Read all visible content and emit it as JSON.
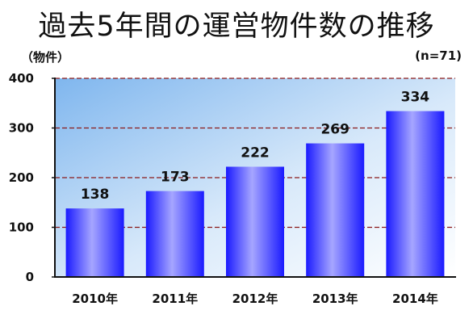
{
  "title": "過去5年間の運営物件数の推移",
  "unit_label": "（物件）",
  "note": "(n=71)",
  "colors": {
    "bar_top": "#1a1aff",
    "bar_mid": "#a0a0ff",
    "grid": "#8b1a1a",
    "plot_bg_start": "#7fb6ee",
    "plot_bg_end": "#ffffff"
  },
  "chart_data": {
    "type": "bar",
    "categories": [
      "2010年",
      "2011年",
      "2012年",
      "2013年",
      "2014年"
    ],
    "values": [
      138,
      173,
      222,
      269,
      334
    ],
    "ylim": [
      0,
      400
    ],
    "yticks": [
      0,
      100,
      200,
      300,
      400
    ],
    "grid": true,
    "data_labels": true
  }
}
